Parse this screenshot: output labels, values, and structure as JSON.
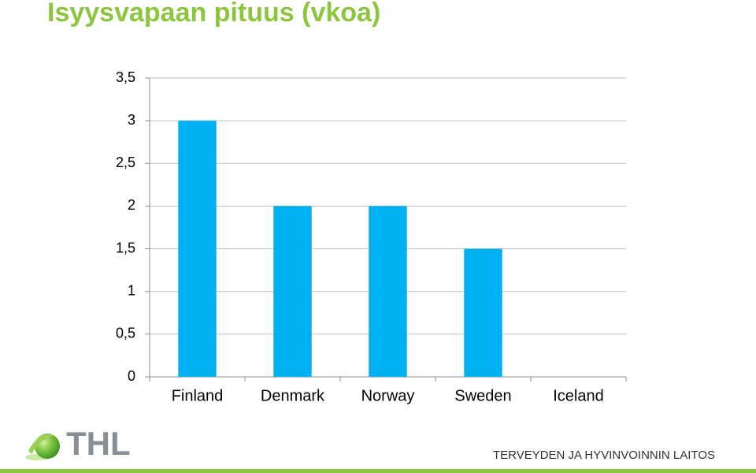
{
  "chart_data": {
    "type": "bar",
    "title": "Isyysvapaan pituus (vkoa)",
    "categories": [
      "Finland",
      "Denmark",
      "Norway",
      "Sweden",
      "Iceland"
    ],
    "values": [
      3,
      2,
      2,
      1.5,
      0
    ],
    "color": "#00b0f0",
    "ylim": [
      0,
      3.5
    ],
    "yticks": [
      0,
      {
        "value": 0.5,
        "label": "0,5"
      },
      1,
      {
        "value": 1.5,
        "label": "1,5"
      },
      2,
      {
        "value": 2.5,
        "label": "2,5"
      },
      3,
      {
        "value": 3.5,
        "label": "3,5"
      }
    ],
    "grid": true
  },
  "logo_text": "THL",
  "org_name": "TERVEYDEN JA HYVINVOINNIN LAITOS"
}
